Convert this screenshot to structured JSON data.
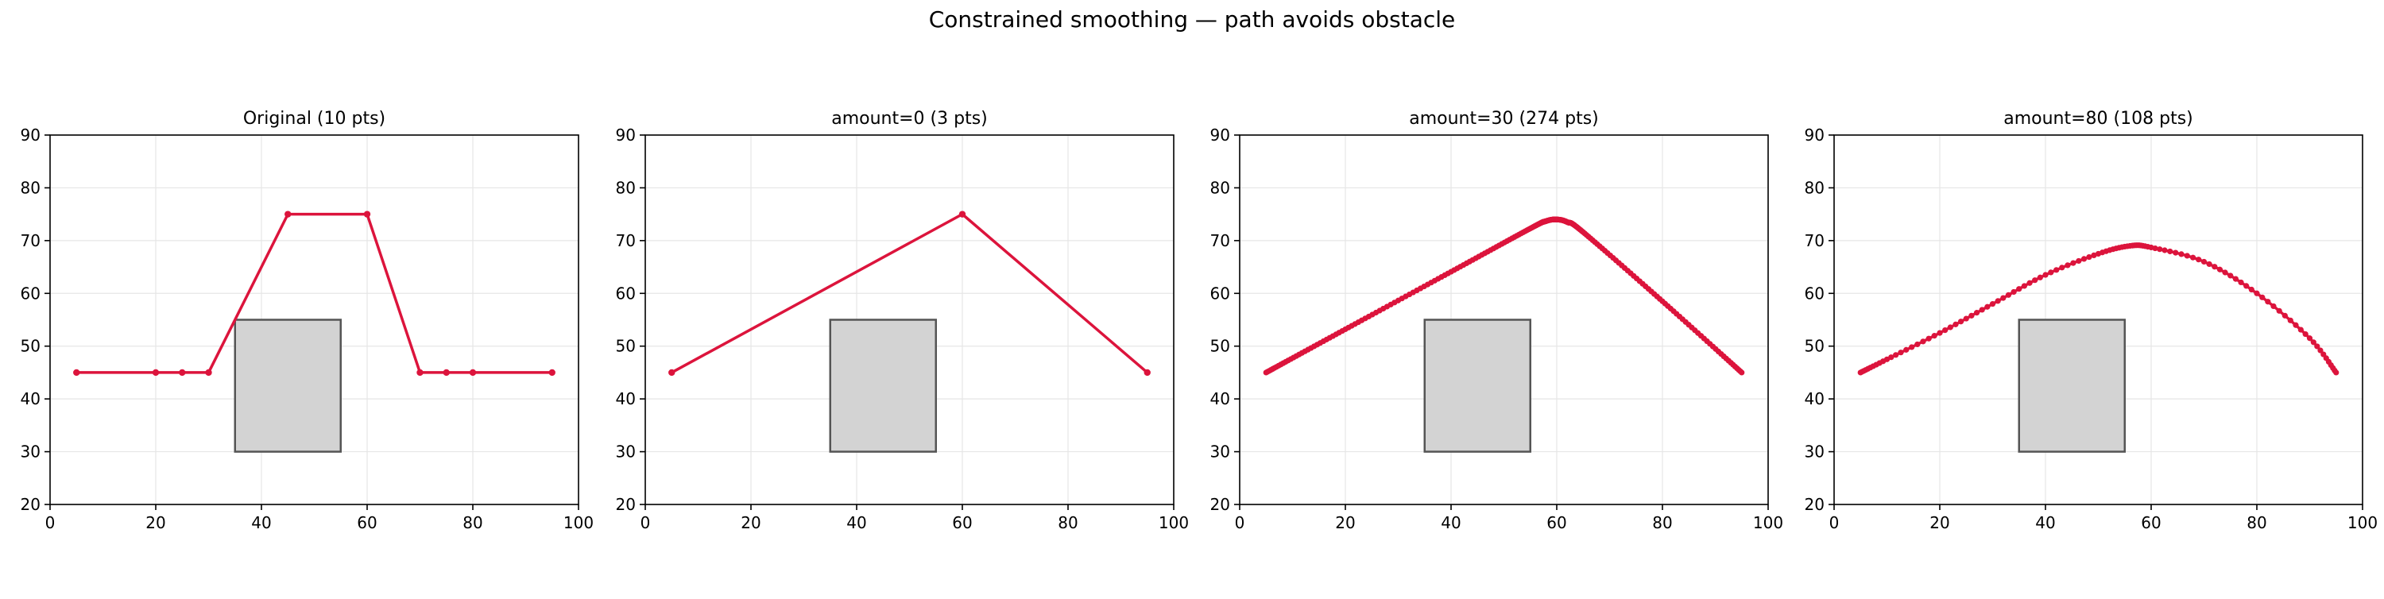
{
  "figure": {
    "title": "Constrained smoothing — path avoids obstacle"
  },
  "colors": {
    "path": "#dc143c",
    "obstacle_fill": "#d3d3d3",
    "obstacle_edge": "#555555",
    "grid": "#e6e6e6"
  },
  "chart_data": [
    {
      "type": "line",
      "title": "Original (10 pts)",
      "xlim": [
        0,
        100
      ],
      "ylim": [
        20,
        90
      ],
      "xticks": [
        0,
        20,
        40,
        60,
        80,
        100
      ],
      "yticks": [
        20,
        30,
        40,
        50,
        60,
        70,
        80,
        90
      ],
      "grid": true,
      "obstacle": {
        "x": [
          35,
          55
        ],
        "y": [
          30,
          55
        ]
      },
      "points": {
        "x": [
          5,
          20,
          25,
          30,
          45,
          60,
          70,
          75,
          80,
          95
        ],
        "y": [
          45,
          45,
          45,
          45,
          75,
          75,
          45,
          45,
          45,
          45
        ]
      },
      "markers": true
    },
    {
      "type": "line",
      "title": "amount=0 (3 pts)",
      "xlim": [
        0,
        100
      ],
      "ylim": [
        20,
        90
      ],
      "xticks": [
        0,
        20,
        40,
        60,
        80,
        100
      ],
      "yticks": [
        20,
        30,
        40,
        50,
        60,
        70,
        80,
        90
      ],
      "grid": true,
      "obstacle": {
        "x": [
          35,
          55
        ],
        "y": [
          30,
          55
        ]
      },
      "points": {
        "x": [
          5,
          60,
          95
        ],
        "y": [
          45,
          75,
          45
        ]
      },
      "markers": true
    },
    {
      "type": "line",
      "title": "amount=30 (274 pts)",
      "xlim": [
        0,
        100
      ],
      "ylim": [
        20,
        90
      ],
      "xticks": [
        0,
        20,
        40,
        60,
        80,
        100
      ],
      "yticks": [
        20,
        30,
        40,
        50,
        60,
        70,
        80,
        90
      ],
      "grid": true,
      "obstacle": {
        "x": [
          35,
          55
        ],
        "y": [
          30,
          55
        ]
      },
      "points": {
        "x": [
          5,
          20,
          40,
          55,
          58,
          60,
          62,
          65,
          80,
          95
        ],
        "y": [
          45,
          53.2,
          64.1,
          72.3,
          73.7,
          74,
          73.5,
          71.6,
          58.5,
          45
        ]
      },
      "markers": true,
      "n_points": 274
    },
    {
      "type": "line",
      "title": "amount=80 (108 pts)",
      "xlim": [
        0,
        100
      ],
      "ylim": [
        20,
        90
      ],
      "xticks": [
        0,
        20,
        40,
        60,
        80,
        100
      ],
      "yticks": [
        20,
        30,
        40,
        50,
        60,
        70,
        80,
        90
      ],
      "grid": true,
      "obstacle": {
        "x": [
          35,
          55
        ],
        "y": [
          30,
          55
        ]
      },
      "points": {
        "x": [
          5,
          10,
          20,
          30,
          40,
          50,
          56,
          60,
          70,
          80,
          90,
          95
        ],
        "y": [
          45,
          47.5,
          52.5,
          58,
          63.5,
          67.5,
          69,
          68.7,
          66,
          60,
          51.5,
          45
        ]
      },
      "markers": true,
      "n_points": 108
    }
  ]
}
